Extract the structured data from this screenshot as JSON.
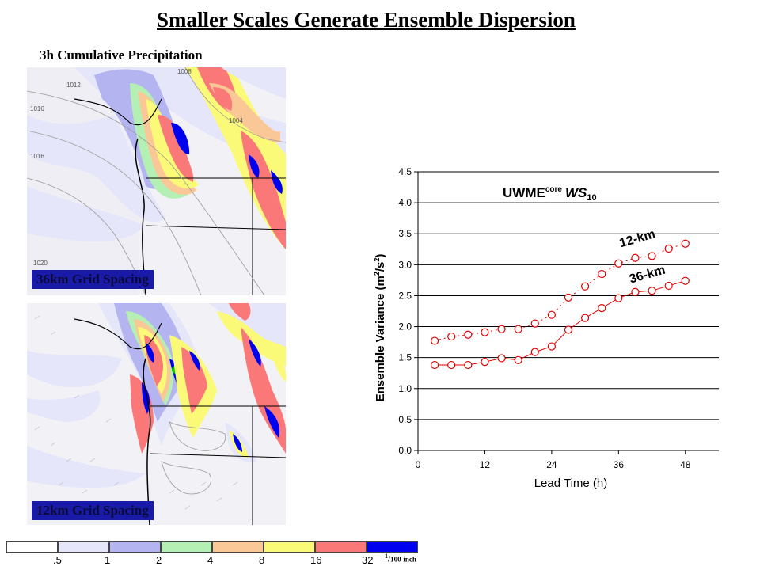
{
  "title": "Smaller Scales Generate Ensemble Dispersion",
  "subtitle": "3h Cumulative Precipitation",
  "maps": [
    {
      "label": "36km Grid Spacing",
      "pressure_labels": [
        "1016",
        "1016",
        "1012",
        "1008",
        "1004",
        "1020"
      ]
    },
    {
      "label": "12km Grid Spacing"
    }
  ],
  "legend": {
    "colors": [
      "#ffffff",
      "#e6e6fa",
      "#b4b4f0",
      "#b4f0b4",
      "#fac896",
      "#fafa78",
      "#fa7878",
      "#0000f0"
    ],
    "levels": [
      ".5",
      "1",
      "2",
      "4",
      "8",
      "16",
      "32"
    ],
    "unit_num": "1",
    "unit_den": "100",
    "unit_word": "inch"
  },
  "chart_data": {
    "type": "line",
    "title_main": "UWME",
    "title_sup": "core",
    "title_italic": "WS",
    "title_sub": "10",
    "xlabel": "Lead Time (h)",
    "ylabel_main": "Ensemble Variance (m",
    "ylabel_sup1": "2",
    "ylabel_mid": "/s",
    "ylabel_sup2": "2",
    "ylabel_end": ")",
    "xlim": [
      0,
      54
    ],
    "ylim": [
      0,
      4.5
    ],
    "xticks": [
      "0",
      "12",
      "24",
      "36",
      "48"
    ],
    "yticks": [
      "0.0",
      "0.5",
      "1.0",
      "1.5",
      "2.0",
      "2.5",
      "3.0",
      "3.5",
      "4.0",
      "4.5"
    ],
    "x": [
      3,
      6,
      9,
      12,
      15,
      18,
      21,
      24,
      27,
      30,
      33,
      36,
      39,
      42,
      45,
      48
    ],
    "series": [
      {
        "name": "12-km",
        "values": [
          1.77,
          1.84,
          1.87,
          1.91,
          1.96,
          1.96,
          2.05,
          2.19,
          2.47,
          2.65,
          2.85,
          3.02,
          3.11,
          3.14,
          3.26,
          3.34
        ]
      },
      {
        "name": "36-km",
        "values": [
          1.38,
          1.38,
          1.38,
          1.43,
          1.49,
          1.46,
          1.59,
          1.68,
          1.95,
          2.14,
          2.3,
          2.46,
          2.56,
          2.58,
          2.66,
          2.74
        ]
      }
    ],
    "line_color": "#e00000",
    "grid": true
  }
}
